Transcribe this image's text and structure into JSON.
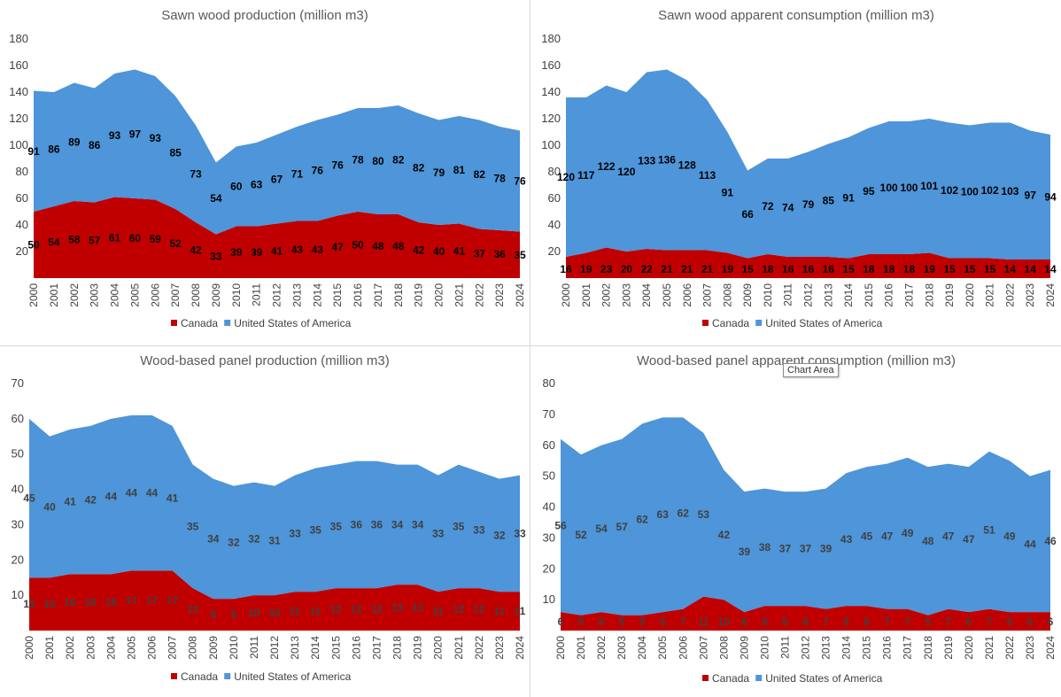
{
  "colors": {
    "canada": "#C00000",
    "usa": "#4E95D9",
    "gridline": "#D9D9D9",
    "divider": "#D9D9D9"
  },
  "tooltip": {
    "text": "Chart Area"
  },
  "chart_data": [
    {
      "type": "area",
      "stacked": true,
      "title": "Sawn wood production (million m3)",
      "x": [
        "2000",
        "2001",
        "2002",
        "2003",
        "2004",
        "2005",
        "2006",
        "2007",
        "2008",
        "2009",
        "2010",
        "2011",
        "2012",
        "2013",
        "2014",
        "2015",
        "2016",
        "2017",
        "2018",
        "2019",
        "2020",
        "2021",
        "2022",
        "2023",
        "2024"
      ],
      "series": [
        {
          "name": "Canada",
          "values": [
            50,
            54,
            58,
            57,
            61,
            60,
            59,
            52,
            42,
            33,
            39,
            39,
            41,
            43,
            43,
            47,
            50,
            48,
            48,
            42,
            40,
            41,
            37,
            36,
            35
          ]
        },
        {
          "name": "United States of America",
          "values": [
            91,
            86,
            89,
            86,
            93,
            97,
            93,
            85,
            73,
            54,
            60,
            63,
            67,
            71,
            76,
            76,
            78,
            80,
            82,
            82,
            79,
            81,
            82,
            78,
            76
          ]
        }
      ],
      "ylim": [
        0,
        180
      ],
      "yticks": [
        20,
        40,
        60,
        80,
        100,
        120,
        140,
        160,
        180
      ],
      "grid": false,
      "legend": "bottom"
    },
    {
      "type": "area",
      "stacked": true,
      "title": "Sawn wood apparent consumption (million m3)",
      "x": [
        "2000",
        "2001",
        "2002",
        "2003",
        "2004",
        "2005",
        "2006",
        "2007",
        "2008",
        "2009",
        "2010",
        "2011",
        "2012",
        "2013",
        "2014",
        "2015",
        "2016",
        "2017",
        "2018",
        "2019",
        "2020",
        "2021",
        "2022",
        "2023",
        "2024"
      ],
      "series": [
        {
          "name": "Canada",
          "values": [
            16,
            19,
            23,
            20,
            22,
            21,
            21,
            21,
            19,
            15,
            18,
            16,
            16,
            16,
            15,
            18,
            18,
            18,
            19,
            15,
            15,
            15,
            14,
            14,
            14
          ]
        },
        {
          "name": "United States of America",
          "values": [
            120,
            117,
            122,
            120,
            133,
            136,
            128,
            113,
            91,
            66,
            72,
            74,
            79,
            85,
            91,
            95,
            100,
            100,
            101,
            102,
            100,
            102,
            103,
            97,
            94
          ]
        }
      ],
      "ylim": [
        0,
        180
      ],
      "yticks": [
        20,
        40,
        60,
        80,
        100,
        120,
        140,
        160,
        180
      ],
      "grid": false,
      "legend": "bottom"
    },
    {
      "type": "area",
      "stacked": true,
      "title": "Wood-based panel production (million m3)",
      "x": [
        "2000",
        "2001",
        "2002",
        "2003",
        "2004",
        "2005",
        "2006",
        "2007",
        "2008",
        "2009",
        "2010",
        "2011",
        "2012",
        "2013",
        "2014",
        "2015",
        "2016",
        "2017",
        "2018",
        "2019",
        "2020",
        "2021",
        "2022",
        "2023",
        "2024"
      ],
      "series": [
        {
          "name": "Canada",
          "values": [
            15,
            15,
            16,
            16,
            16,
            17,
            17,
            17,
            12,
            9,
            9,
            10,
            10,
            11,
            11,
            12,
            12,
            12,
            13,
            13,
            11,
            12,
            12,
            11,
            11
          ]
        },
        {
          "name": "United States of America",
          "values": [
            45,
            40,
            41,
            42,
            44,
            44,
            44,
            41,
            35,
            34,
            32,
            32,
            31,
            33,
            35,
            35,
            36,
            36,
            34,
            34,
            33,
            35,
            33,
            32,
            33
          ]
        }
      ],
      "ylim": [
        0,
        70
      ],
      "yticks": [
        10,
        20,
        30,
        40,
        50,
        60,
        70
      ],
      "grid": false,
      "legend": "bottom"
    },
    {
      "type": "area",
      "stacked": true,
      "title": "Wood-based panel apparent consumption (million m3)",
      "x": [
        "2000",
        "2001",
        "2002",
        "2003",
        "2004",
        "2005",
        "2006",
        "2007",
        "2008",
        "2009",
        "2010",
        "2011",
        "2012",
        "2013",
        "2014",
        "2015",
        "2016",
        "2017",
        "2018",
        "2019",
        "2020",
        "2021",
        "2022",
        "2023",
        "2024"
      ],
      "series": [
        {
          "name": "Canada",
          "values": [
            6,
            5,
            6,
            5,
            5,
            6,
            7,
            11,
            10,
            6,
            8,
            8,
            8,
            7,
            8,
            8,
            7,
            7,
            5,
            7,
            6,
            7,
            6,
            6,
            6
          ]
        },
        {
          "name": "United States of America",
          "values": [
            56,
            52,
            54,
            57,
            62,
            63,
            62,
            53,
            42,
            39,
            38,
            37,
            37,
            39,
            43,
            45,
            47,
            49,
            48,
            47,
            47,
            51,
            49,
            44,
            46
          ]
        }
      ],
      "ylim": [
        0,
        80
      ],
      "yticks": [
        10,
        20,
        30,
        40,
        50,
        60,
        70,
        80
      ],
      "grid": false,
      "legend": "bottom"
    }
  ]
}
